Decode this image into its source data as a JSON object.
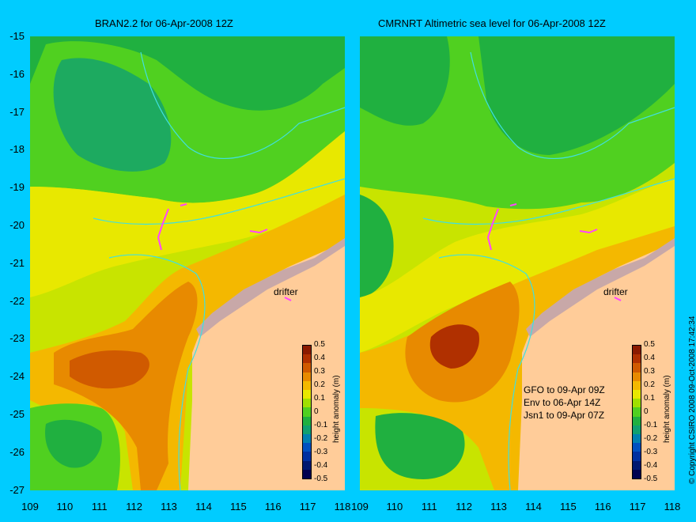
{
  "titles": {
    "left": "BRAN2.2 for 06-Apr-2008 12Z",
    "right": "CMRNRT Altimetric sea level  for 06-Apr-2008 12Z"
  },
  "y_axis_ticks": [
    "-15",
    "-16",
    "-17",
    "-18",
    "-19",
    "-20",
    "-21",
    "-22",
    "-23",
    "-24",
    "-25",
    "-26",
    "-27"
  ],
  "x_axis_ticks_left": [
    "109",
    "110",
    "111",
    "112",
    "113",
    "114",
    "115",
    "116",
    "117",
    "118"
  ],
  "x_axis_ticks_right": [
    "109",
    "110",
    "111",
    "112",
    "113",
    "114",
    "115",
    "116",
    "117",
    "118"
  ],
  "drifter_label": "drifter",
  "colorbar": {
    "title": "height anomaly (m)",
    "ticks": [
      "0.5",
      "0.4",
      "0.3",
      "0.2",
      "0.1",
      "0",
      "-0.1",
      "-0.2",
      "-0.3",
      "-0.4",
      "-0.5"
    ],
    "colors": [
      "#8b1a00",
      "#b03000",
      "#d05a00",
      "#e88a00",
      "#f4b800",
      "#e8e800",
      "#a0e000",
      "#50d020",
      "#20b040",
      "#10a070",
      "#0080b0",
      "#0050c0",
      "#0030a0",
      "#001870",
      "#000050"
    ]
  },
  "altimetry_notes": [
    "GFO to 09-Apr 09Z",
    "Env to 06-Apr 14Z",
    "Jsn1 to 09-Apr 07Z"
  ],
  "copyright": "© Copyright CSIRO 2008   09-Oct-2008 17:42:34",
  "map_colors": {
    "land": "#ffcc99",
    "isobath": "#40e0e0",
    "drifter_track": "#ff44ff",
    "high_land": "#c8a8a8"
  }
}
